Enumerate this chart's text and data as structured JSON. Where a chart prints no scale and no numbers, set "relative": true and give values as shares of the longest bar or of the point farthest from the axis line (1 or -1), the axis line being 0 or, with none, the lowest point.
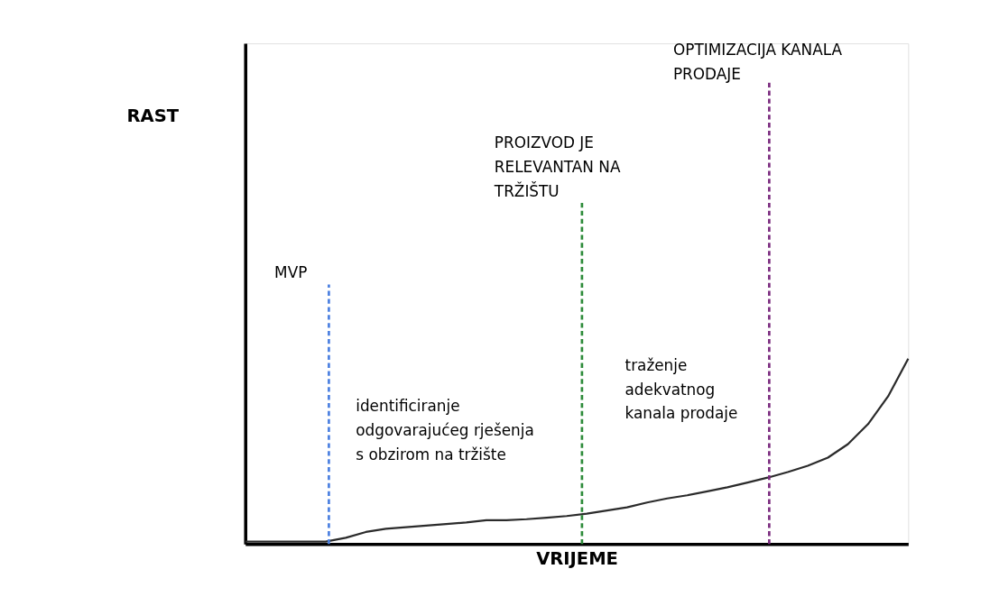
{
  "chart_data": {
    "type": "line",
    "relative": true,
    "xlabel": "VRIJEME",
    "categories": [
      null,
      null,
      null,
      null,
      null,
      null,
      null,
      null,
      null,
      null,
      null,
      null,
      null,
      null,
      null,
      null,
      null,
      null,
      null,
      null,
      null,
      null,
      null,
      null,
      null,
      null,
      null,
      null,
      null,
      null,
      null,
      null,
      null,
      null
    ],
    "series": [
      {
        "color": "#2b2b2b",
        "values": [
          0.013,
          0.013,
          0.013,
          0.013,
          0.013,
          0.034,
          0.065,
          0.082,
          0.091,
          0.099,
          0.108,
          0.116,
          0.129,
          0.129,
          0.134,
          0.142,
          0.151,
          0.164,
          0.181,
          0.198,
          0.224,
          0.246,
          0.263,
          0.284,
          0.306,
          0.332,
          0.358,
          0.388,
          0.422,
          0.466,
          0.539,
          0.647,
          0.797,
          1
        ]
      }
    ],
    "annotations": [
      "RAST",
      "MVP",
      "PROIZVOD JE\nRELEVANTAN NA\nTRŽIŠTU",
      "OPTIMIZACIJA KANALA\nPRODAJE",
      "identificiranje\nodgovarajućeg rješenja\ns obzirom na tržište",
      "traženje\nadekvatnog\nkanala prodaje"
    ],
    "grid": false,
    "tick_labels": false,
    "marker": "none",
    "line_style": "solid"
  }
}
